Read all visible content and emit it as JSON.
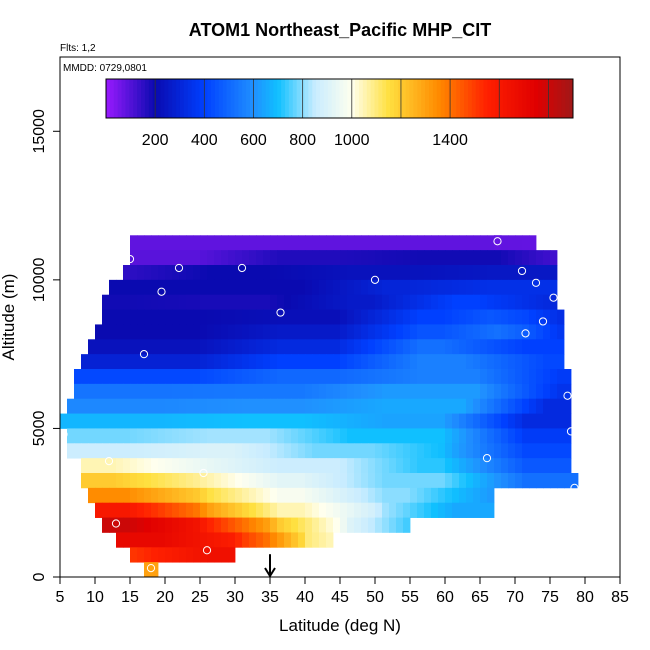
{
  "header": {
    "title": "ATOM1 Northeast_Pacific MHP_CIT",
    "flights_note": "Flts: 1,2",
    "date_note": "MMDD: 0729,0801"
  },
  "chart_data": {
    "type": "heatmap",
    "xlabel": "Latitude (deg N)",
    "ylabel": "Altitude (m)",
    "xlim": [
      5,
      85
    ],
    "ylim": [
      0,
      17500
    ],
    "x_ticks": [
      5,
      10,
      15,
      20,
      25,
      30,
      35,
      40,
      45,
      50,
      55,
      60,
      65,
      70,
      75,
      80,
      85
    ],
    "y_ticks": [
      0,
      5000,
      10000,
      15000
    ],
    "grid": false,
    "colorbar": {
      "placement": "top-inside",
      "range": [
        0,
        1900
      ],
      "tick_values": [
        200,
        400,
        600,
        800,
        1000,
        1400
      ],
      "stops": [
        {
          "v": 0,
          "color": "#9a1aff"
        },
        {
          "v": 200,
          "color": "#0a0ab0"
        },
        {
          "v": 400,
          "color": "#0040ff"
        },
        {
          "v": 600,
          "color": "#2090ff"
        },
        {
          "v": 700,
          "color": "#10c0ff"
        },
        {
          "v": 850,
          "color": "#c8ecff"
        },
        {
          "v": 1000,
          "color": "#ffffee"
        },
        {
          "v": 1150,
          "color": "#ffe040"
        },
        {
          "v": 1350,
          "color": "#ff8c00"
        },
        {
          "v": 1550,
          "color": "#ff2000"
        },
        {
          "v": 1750,
          "color": "#e00000"
        },
        {
          "v": 1900,
          "color": "#a01818"
        }
      ]
    },
    "field_rows": [
      {
        "alt": 11000,
        "segs": [
          [
            15,
            73,
            80
          ],
          [
            67,
            68,
            70
          ]
        ]
      },
      {
        "alt": 10500,
        "segs": [
          [
            15,
            30,
            90
          ],
          [
            30,
            50,
            170
          ],
          [
            50,
            73,
            190
          ],
          [
            73,
            76,
            90
          ]
        ]
      },
      {
        "alt": 10000,
        "segs": [
          [
            14,
            20,
            150
          ],
          [
            20,
            40,
            200
          ],
          [
            40,
            60,
            230
          ],
          [
            60,
            76,
            250
          ]
        ]
      },
      {
        "alt": 9500,
        "segs": [
          [
            12,
            25,
            200
          ],
          [
            25,
            45,
            200
          ],
          [
            45,
            60,
            300
          ],
          [
            60,
            76,
            340
          ]
        ]
      },
      {
        "alt": 9000,
        "segs": [
          [
            11,
            20,
            190
          ],
          [
            20,
            40,
            180
          ],
          [
            40,
            55,
            260
          ],
          [
            55,
            70,
            400
          ],
          [
            70,
            76,
            300
          ]
        ]
      },
      {
        "alt": 8500,
        "segs": [
          [
            11,
            30,
            200
          ],
          [
            30,
            50,
            220
          ],
          [
            50,
            65,
            400
          ],
          [
            65,
            72,
            500
          ],
          [
            72,
            77,
            300
          ]
        ]
      },
      {
        "alt": 8000,
        "segs": [
          [
            10,
            30,
            200
          ],
          [
            30,
            50,
            260
          ],
          [
            50,
            65,
            450
          ],
          [
            65,
            73,
            560
          ],
          [
            73,
            77,
            300
          ]
        ]
      },
      {
        "alt": 7500,
        "segs": [
          [
            9,
            30,
            230
          ],
          [
            30,
            50,
            320
          ],
          [
            50,
            65,
            520
          ],
          [
            65,
            77,
            400
          ]
        ]
      },
      {
        "alt": 7000,
        "segs": [
          [
            8,
            30,
            290
          ],
          [
            30,
            50,
            400
          ],
          [
            50,
            68,
            560
          ],
          [
            68,
            77,
            420
          ]
        ]
      },
      {
        "alt": 6500,
        "segs": [
          [
            7,
            30,
            420
          ],
          [
            30,
            50,
            500
          ],
          [
            50,
            70,
            560
          ],
          [
            70,
            78,
            380
          ]
        ]
      },
      {
        "alt": 6000,
        "segs": [
          [
            7,
            25,
            530
          ],
          [
            25,
            45,
            540
          ],
          [
            45,
            70,
            620
          ],
          [
            70,
            78,
            350
          ]
        ]
      },
      {
        "alt": 5500,
        "segs": [
          [
            6,
            25,
            580
          ],
          [
            25,
            45,
            600
          ],
          [
            45,
            68,
            650
          ],
          [
            68,
            78,
            320
          ]
        ]
      },
      {
        "alt": 5000,
        "segs": [
          [
            5,
            25,
            680
          ],
          [
            25,
            45,
            700
          ],
          [
            45,
            65,
            640
          ],
          [
            65,
            78,
            320
          ]
        ]
      },
      {
        "alt": 4500,
        "segs": [
          [
            6,
            20,
            780
          ],
          [
            20,
            40,
            820
          ],
          [
            40,
            65,
            700
          ],
          [
            65,
            78,
            380
          ]
        ]
      },
      {
        "alt": 4000,
        "segs": [
          [
            6,
            20,
            860
          ],
          [
            20,
            35,
            900
          ],
          [
            35,
            55,
            780
          ],
          [
            55,
            65,
            680
          ],
          [
            65,
            78,
            420
          ]
        ]
      },
      {
        "alt": 3500,
        "segs": [
          [
            8,
            18,
            1050
          ],
          [
            18,
            30,
            950
          ],
          [
            30,
            50,
            860
          ],
          [
            50,
            65,
            720
          ],
          [
            65,
            78,
            460
          ]
        ]
      },
      {
        "alt": 3000,
        "segs": [
          [
            8,
            18,
            1200
          ],
          [
            18,
            30,
            1080
          ],
          [
            30,
            45,
            920
          ],
          [
            45,
            65,
            780
          ],
          [
            65,
            79,
            520
          ]
        ]
      },
      {
        "alt": 2500,
        "segs": [
          [
            9,
            20,
            1350
          ],
          [
            20,
            30,
            1180
          ],
          [
            30,
            45,
            980
          ],
          [
            45,
            60,
            800
          ],
          [
            60,
            67,
            620
          ]
        ]
      },
      {
        "alt": 2000,
        "segs": [
          [
            10,
            20,
            1600
          ],
          [
            20,
            30,
            1350
          ],
          [
            30,
            45,
            1050
          ],
          [
            45,
            55,
            850
          ],
          [
            55,
            67,
            650
          ]
        ]
      },
      {
        "alt": 1500,
        "segs": [
          [
            11,
            20,
            1800
          ],
          [
            20,
            30,
            1600
          ],
          [
            30,
            40,
            1250
          ],
          [
            40,
            50,
            950
          ],
          [
            50,
            55,
            700
          ]
        ]
      },
      {
        "alt": 1000,
        "segs": [
          [
            13,
            25,
            1700
          ],
          [
            25,
            35,
            1550
          ],
          [
            35,
            40,
            1200
          ],
          [
            40,
            44,
            1000
          ]
        ]
      },
      {
        "alt": 500,
        "segs": [
          [
            15,
            20,
            1500
          ],
          [
            20,
            30,
            1650
          ]
        ]
      },
      {
        "alt": 0,
        "segs": [
          [
            17,
            19,
            1300
          ]
        ]
      }
    ],
    "point_lat": [
      5.5,
      12,
      13,
      15,
      17,
      18,
      19.5,
      22,
      25.5,
      26,
      31,
      36.5,
      50,
      66,
      67.5,
      71,
      71.5,
      73,
      74,
      75.5,
      77.5,
      78,
      78.5
    ],
    "point_alt": [
      4800,
      3900,
      1800,
      10700,
      7500,
      300,
      9600,
      10400,
      3500,
      900,
      10400,
      8900,
      10000,
      4000,
      11300,
      10300,
      8200,
      9900,
      8600,
      9400,
      6100,
      4900,
      3000
    ],
    "annotations": [
      {
        "type": "arrow",
        "x": 35,
        "y_from": 700,
        "y_to": 0,
        "direction": "down"
      }
    ]
  }
}
